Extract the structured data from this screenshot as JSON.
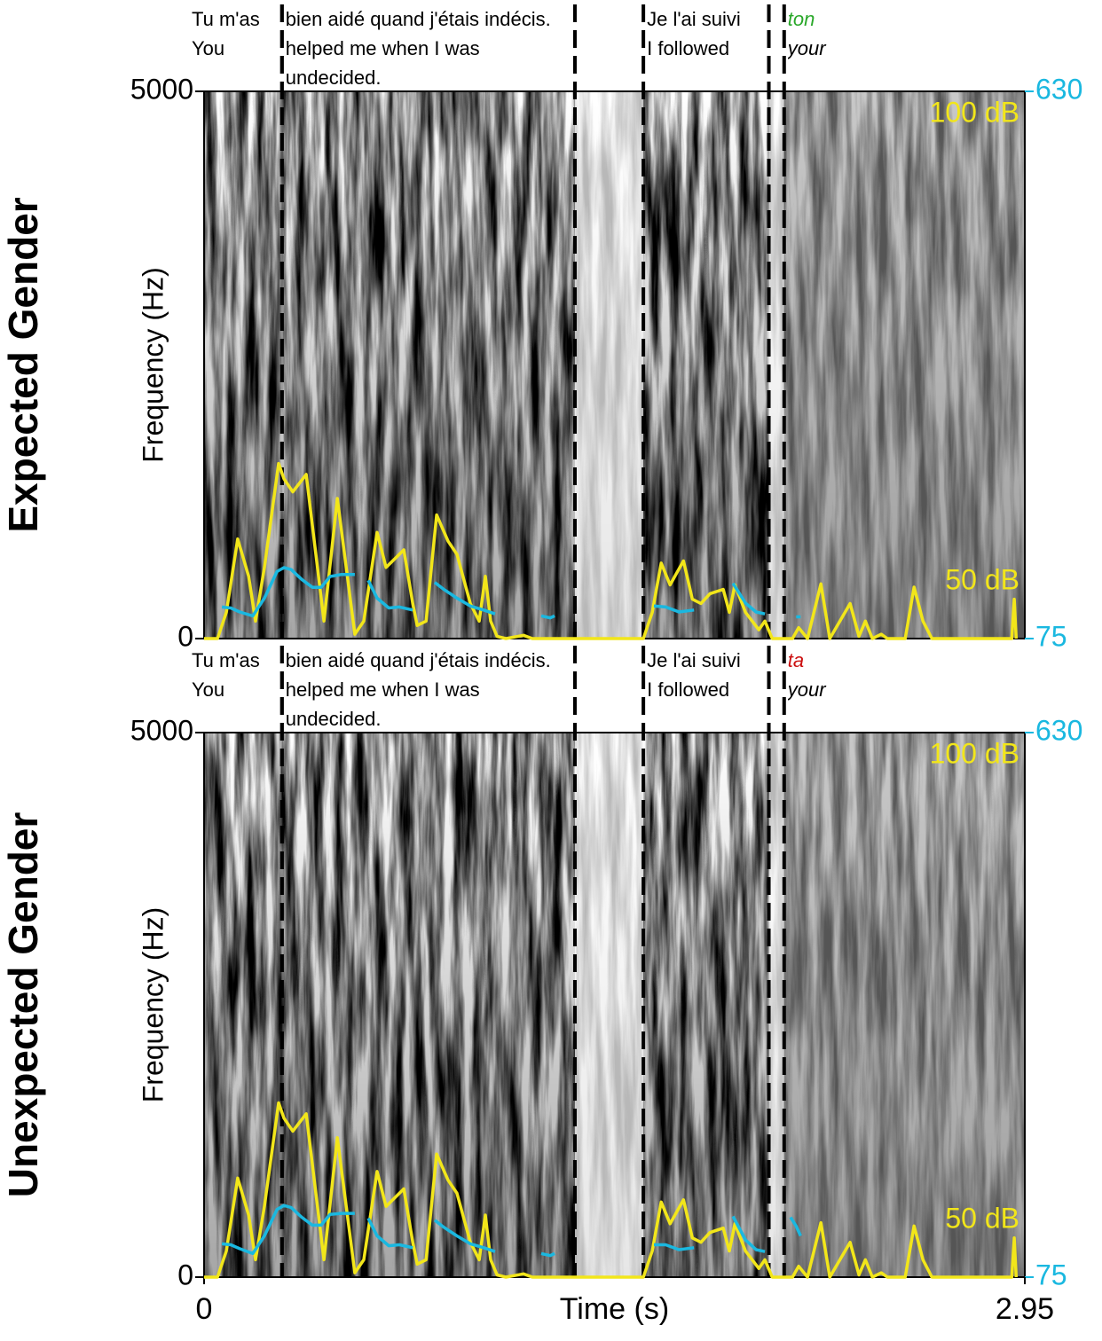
{
  "chart_data": [
    {
      "type": "spectrogram",
      "row_label": "Expected Gender",
      "ylabel": "Frequency (Hz)",
      "xlim": [
        0,
        2.95
      ],
      "ylim": [
        0,
        5000
      ],
      "yticks": [
        0,
        5000
      ],
      "y2lim": [
        75,
        630
      ],
      "y2ticks": [
        75,
        630
      ],
      "y2color": "#1ab8e0",
      "annotations": [
        "100 dB",
        "50 dB"
      ],
      "annotation_color": "#f2e61a",
      "segments": [
        {
          "start": 0,
          "end": 0.28,
          "text": "Tu m'as",
          "translation": "You"
        },
        {
          "start": 0.28,
          "end": 1.333,
          "text": "bien aidé quand j'étais indécis.",
          "translation": "helped me when I was undecided."
        },
        {
          "start": 1.579,
          "end": 2.03,
          "text": "Je l'ai suivi",
          "translation": "I followed"
        },
        {
          "start": 2.085,
          "end": 2.95,
          "text": "ton",
          "translation": "your",
          "style": "italic",
          "color": "#2aa82a"
        }
      ],
      "series": [
        {
          "axis": "y",
          "color": "#f2e61a",
          "x": [
            0,
            0.048,
            0.08,
            0.121,
            0.16,
            0.185,
            0.217,
            0.268,
            0.287,
            0.319,
            0.367,
            0.431,
            0.479,
            0.542,
            0.574,
            0.622,
            0.654,
            0.718,
            0.75,
            0.766,
            0.798,
            0.836,
            0.877,
            0.909,
            0.957,
            0.989,
            1.011,
            1.03,
            1.053,
            1.085,
            1.148,
            1.18,
            1.579,
            1.611,
            1.643,
            1.675,
            1.723,
            1.755,
            1.786,
            1.818,
            1.866,
            1.888,
            1.908,
            1.946,
            1.994,
            2.016,
            2.042,
            2.115,
            2.137,
            2.169,
            2.217,
            2.249,
            2.322,
            2.354,
            2.377,
            2.402,
            2.434,
            2.456,
            2.52,
            2.552,
            2.584,
            2.616,
            2.903,
            2.912,
            2.919
          ],
          "values": [
            0,
            0,
            240,
            910,
            570,
            160,
            650,
            1600,
            1460,
            1340,
            1500,
            160,
            1280,
            40,
            160,
            970,
            650,
            810,
            320,
            120,
            160,
            1130,
            890,
            770,
            320,
            160,
            570,
            160,
            20,
            0,
            30,
            0,
            0,
            240,
            690,
            490,
            710,
            360,
            320,
            410,
            450,
            240,
            490,
            240,
            80,
            160,
            0,
            0,
            100,
            0,
            500,
            0,
            320,
            20,
            160,
            0,
            40,
            0,
            0,
            470,
            160,
            0,
            0,
            360,
            0
          ]
        },
        {
          "axis": "y2",
          "color": "#1ab8e0",
          "x": [
            0.064,
            0.096,
            0.128,
            0.175,
            0.217,
            0.262,
            0.287,
            0.313,
            0.351,
            0.389,
            0.421,
            0.453,
            0.494,
            0.542,
            0.566,
            0.59,
            0.622,
            0.664,
            0.702,
            0.75,
            0.79,
            0.829,
            0.861,
            0.909,
            0.957,
            1.005,
            1.046,
            1.13,
            1.212,
            1.244,
            1.26,
            1.44,
            1.617,
            1.659,
            1.707,
            1.761,
            1.83,
            1.901,
            1.946,
            1.984,
            2.016,
            2.07,
            2.128,
            2.144
          ],
          "values": [
            107,
            106,
            102,
            98,
            116,
            143,
            147,
            145,
            135,
            127,
            127,
            138,
            140,
            140,
            null,
            134,
            116,
            106,
            107,
            104,
            null,
            132,
            125,
            116,
            108,
            104,
            100,
            null,
            98,
            96,
            98,
            null,
            108,
            107,
            102,
            104,
            null,
            131,
            111,
            102,
            100,
            null,
            97,
            97
          ]
        }
      ]
    },
    {
      "type": "spectrogram",
      "row_label": "Unexpected Gender",
      "ylabel": "Frequency (Hz)",
      "xlabel": "Time (s)",
      "xlim": [
        0,
        2.95
      ],
      "xticks": [
        0,
        2.95
      ],
      "ylim": [
        0,
        5000
      ],
      "yticks": [
        0,
        5000
      ],
      "y2lim": [
        75,
        630
      ],
      "y2ticks": [
        75,
        630
      ],
      "y2color": "#1ab8e0",
      "annotations": [
        "100 dB",
        "50 dB"
      ],
      "annotation_color": "#f2e61a",
      "segments": [
        {
          "start": 0,
          "end": 0.28,
          "text": "Tu m'as",
          "translation": "You"
        },
        {
          "start": 0.28,
          "end": 1.333,
          "text": "bien aidé quand j'étais indécis.",
          "translation": "helped me when I was undecided."
        },
        {
          "start": 1.579,
          "end": 2.03,
          "text": "Je l'ai suivi",
          "translation": "I followed"
        },
        {
          "start": 2.085,
          "end": 2.95,
          "text": "ta",
          "translation": "your",
          "style": "italic",
          "color": "#cc1111"
        }
      ],
      "series": [
        {
          "axis": "y",
          "color": "#f2e61a",
          "x": [
            0,
            0.048,
            0.08,
            0.121,
            0.16,
            0.185,
            0.217,
            0.268,
            0.287,
            0.319,
            0.367,
            0.431,
            0.479,
            0.542,
            0.574,
            0.622,
            0.654,
            0.718,
            0.75,
            0.766,
            0.798,
            0.836,
            0.877,
            0.909,
            0.957,
            0.989,
            1.011,
            1.03,
            1.053,
            1.085,
            1.148,
            1.18,
            1.579,
            1.611,
            1.643,
            1.675,
            1.723,
            1.755,
            1.786,
            1.818,
            1.866,
            1.888,
            1.908,
            1.946,
            1.994,
            2.016,
            2.042,
            2.115,
            2.137,
            2.169,
            2.217,
            2.249,
            2.322,
            2.354,
            2.377,
            2.402,
            2.434,
            2.456,
            2.52,
            2.552,
            2.584,
            2.616,
            2.903,
            2.912,
            2.919
          ],
          "values": [
            0,
            0,
            240,
            910,
            570,
            160,
            650,
            1600,
            1460,
            1340,
            1500,
            160,
            1280,
            40,
            160,
            970,
            650,
            810,
            320,
            120,
            160,
            1130,
            890,
            770,
            320,
            160,
            570,
            160,
            20,
            0,
            30,
            0,
            0,
            240,
            690,
            490,
            710,
            360,
            320,
            410,
            450,
            240,
            490,
            240,
            80,
            160,
            0,
            0,
            100,
            0,
            500,
            0,
            320,
            20,
            160,
            0,
            40,
            0,
            0,
            470,
            160,
            0,
            0,
            360,
            0
          ]
        },
        {
          "axis": "y2",
          "color": "#1ab8e0",
          "x": [
            0.064,
            0.096,
            0.128,
            0.175,
            0.217,
            0.262,
            0.287,
            0.313,
            0.351,
            0.389,
            0.421,
            0.453,
            0.494,
            0.542,
            0.566,
            0.59,
            0.622,
            0.664,
            0.702,
            0.75,
            0.79,
            0.829,
            0.861,
            0.909,
            0.957,
            1.005,
            1.046,
            1.13,
            1.212,
            1.244,
            1.26,
            1.44,
            1.617,
            1.659,
            1.707,
            1.761,
            1.83,
            1.901,
            1.946,
            1.984,
            2.016,
            2.07,
            2.108,
            2.128,
            2.144
          ],
          "values": [
            109,
            108,
            104,
            99,
            117,
            144,
            148,
            146,
            136,
            128,
            128,
            139,
            140,
            140,
            null,
            135,
            117,
            107,
            108,
            105,
            null,
            133,
            126,
            117,
            109,
            105,
            101,
            null,
            99,
            97,
            99,
            null,
            108,
            108,
            103,
            105,
            null,
            137,
            113,
            103,
            101,
            null,
            136,
            127,
            117
          ]
        }
      ]
    }
  ]
}
